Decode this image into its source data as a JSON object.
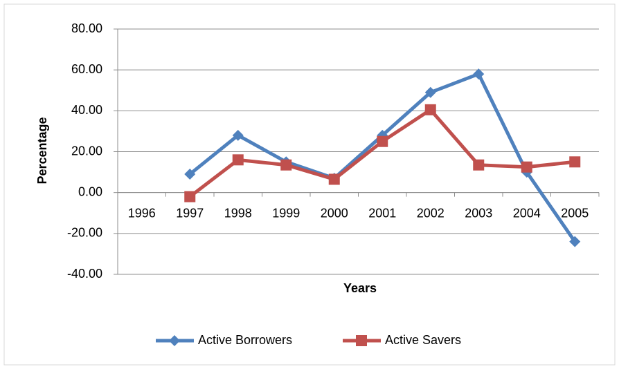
{
  "chart_data": {
    "type": "line",
    "x_label": "Years",
    "y_label": "Percentage",
    "categories": [
      "1996",
      "1997",
      "1998",
      "1999",
      "2000",
      "2001",
      "2002",
      "2003",
      "2004",
      "2005"
    ],
    "series": [
      {
        "name": "Active Borrowers",
        "color": "#4f81bd",
        "marker": "diamond",
        "values": [
          null,
          9,
          28,
          15,
          7,
          28,
          49,
          58,
          10,
          -24
        ]
      },
      {
        "name": "Active Savers",
        "color": "#c0504d",
        "marker": "square",
        "values": [
          null,
          -2,
          16,
          13.5,
          6.5,
          25,
          40.5,
          13.5,
          12.5,
          15
        ]
      }
    ],
    "ylim": [
      -40,
      80
    ],
    "yticks": [
      {
        "value": -40,
        "label": "-40.00"
      },
      {
        "value": -20,
        "label": "-20.00"
      },
      {
        "value": 0,
        "label": "0.00"
      },
      {
        "value": 20,
        "label": "20.00"
      },
      {
        "value": 40,
        "label": "40.00"
      },
      {
        "value": 60,
        "label": "60.00"
      },
      {
        "value": 80,
        "label": "80.00"
      }
    ],
    "grid": true,
    "legend": "bottom"
  }
}
